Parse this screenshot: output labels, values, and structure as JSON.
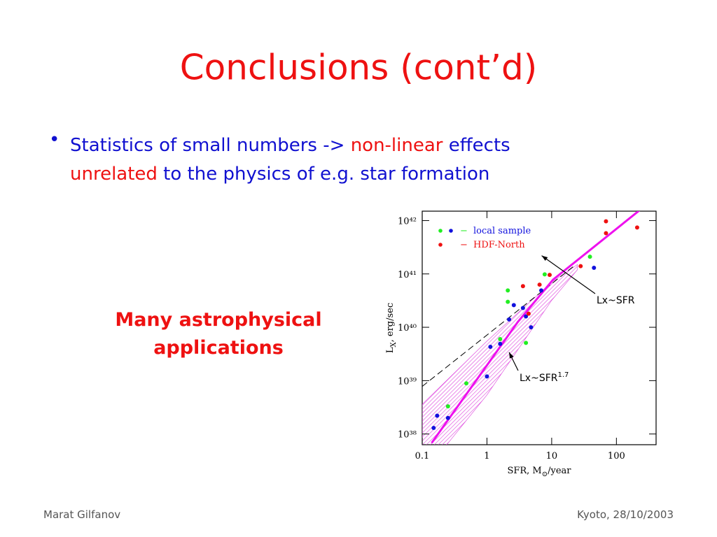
{
  "slide": {
    "title": "Conclusions (cont’d)",
    "bullet": [
      [
        {
          "text": "Statistics of small numbers -> ",
          "color": "#1010d0"
        },
        {
          "text": "non-linear",
          "color": "#ee1111"
        },
        {
          "text": " effects",
          "color": "#1010d0"
        }
      ],
      [
        {
          "text": "unrelated",
          "color": "#ee1111"
        },
        {
          "text": " to the physics of e.g. star formation",
          "color": "#1010d0"
        }
      ]
    ],
    "callout": [
      "Many astrophysical",
      "applications"
    ],
    "footer_left": "Marat Gilfanov",
    "footer_right": "Kyoto, 28/10/2003"
  },
  "chart_data": {
    "type": "scatter",
    "log_x": true,
    "log_y": true,
    "xlabel": [
      "SFR, M",
      "⊙",
      "/year"
    ],
    "ylabel": [
      "L",
      "X",
      ", erg/sec"
    ],
    "xlim": [
      0.1,
      410
    ],
    "ylim": [
      6.3e+37,
      1.5e+42
    ],
    "xticks": [
      0.1,
      1,
      10,
      100
    ],
    "yticks": [
      {
        "value": 1e+38,
        "label": "10³⁸"
      },
      {
        "value": 1e+39,
        "label": "10³⁹"
      },
      {
        "value": 1e+40,
        "label": "10⁴⁰"
      },
      {
        "value": 1e+41,
        "label": "10⁴¹"
      },
      {
        "value": 1e+42,
        "label": "10⁴²"
      }
    ],
    "series": [
      {
        "name": "local sample",
        "groups": [
          {
            "color": "#22ee22",
            "x": [
              2.1,
              2.1,
              1.6,
              4.0,
              7.8,
              39,
              0.48,
              0.25
            ],
            "values": [
              4.9e+40,
              3e+40,
              6e+39,
              5.1e+39,
              9.8e+40,
              2.1e+41,
              8.9e+38,
              3.3e+38
            ]
          },
          {
            "color": "#1111dd",
            "x": [
              0.17,
              0.15,
              0.25,
              1,
              1.13,
              2.2,
              2.6,
              3.6,
              4.0,
              4.8,
              6.9,
              45,
              1.6
            ],
            "values": [
              2.2e+38,
              1.3e+38,
              2e+38,
              1.2e+39,
              4.3e+39,
              1.4e+40,
              2.6e+40,
              2.3e+40,
              1.6e+40,
              1e+40,
              4.9e+40,
              1.3e+41,
              4.9e+39
            ]
          }
        ]
      },
      {
        "name": "HDF-North",
        "groups": [
          {
            "color": "#ee1111",
            "x": [
              3.6,
              6.5,
              9.3,
              28,
              69,
              69,
              209,
              4.4
            ],
            "values": [
              5.9e+40,
              6.3e+40,
              9.6e+40,
              1.4e+41,
              5.8e+41,
              9.7e+41,
              7.4e+41,
              1.8e+40
            ]
          }
        ]
      }
    ],
    "band": {
      "color": "#dd44dd",
      "x": [
        0.1,
        1,
        10,
        25
      ],
      "upper": [
        3.6e+38,
        5.5e+39,
        7e+40,
        1.5e+41
      ],
      "lower": [
        1.7e+37,
        5.4e+38,
        3.2e+40,
        1.2e+41
      ]
    },
    "lines": [
      {
        "color": "#000000",
        "dash": true,
        "x": [
          0.1,
          22
        ],
        "values": [
          7.8e+38,
          1.4e+41
        ]
      },
      {
        "color": "#ee11ee",
        "dash": false,
        "x": [
          0.14,
          3,
          10.5,
          234
        ],
        "values": [
          6.8e+37,
          1.26e+40,
          7.8e+40,
          1.6e+42
        ]
      }
    ],
    "annotations": [
      {
        "text": "Lx~SFR",
        "sup": "",
        "x": 7,
        "y": 2.2e+41
      },
      {
        "text": "Lx~SFR",
        "sup": "1.7",
        "x": 2.2,
        "y": 3.4e+39
      }
    ]
  }
}
